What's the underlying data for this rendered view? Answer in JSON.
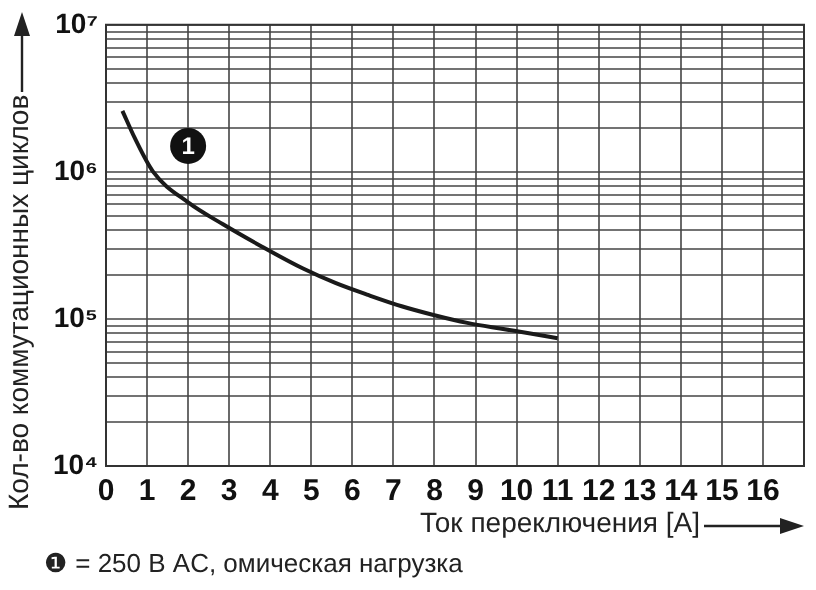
{
  "chart_data": {
    "type": "line",
    "xlabel": "Ток переключения [A]",
    "ylabel": "Кол-во коммутационных циклов",
    "log": "y",
    "grid": true,
    "marker": "none",
    "line_style": "solid",
    "legend": false,
    "xlim": [
      0,
      17
    ],
    "xticks": [
      0,
      1,
      2,
      3,
      4,
      5,
      6,
      7,
      8,
      9,
      10,
      11,
      12,
      13,
      14,
      15,
      16
    ],
    "ylim": [
      10000,
      10000000
    ],
    "yticks": [
      {
        "value": 10000,
        "label": "10⁴"
      },
      {
        "value": 20000,
        "label": null
      },
      {
        "value": 30000,
        "label": null
      },
      {
        "value": 40000,
        "label": null
      },
      {
        "value": 50000,
        "label": null
      },
      {
        "value": 60000,
        "label": null
      },
      {
        "value": 70000,
        "label": null
      },
      {
        "value": 80000,
        "label": null
      },
      {
        "value": 90000,
        "label": null
      },
      {
        "value": 100000,
        "label": "10⁵"
      },
      {
        "value": 200000,
        "label": null
      },
      {
        "value": 300000,
        "label": null
      },
      {
        "value": 400000,
        "label": null
      },
      {
        "value": 500000,
        "label": null
      },
      {
        "value": 600000,
        "label": null
      },
      {
        "value": 700000,
        "label": null
      },
      {
        "value": 800000,
        "label": null
      },
      {
        "value": 900000,
        "label": null
      },
      {
        "value": 1000000,
        "label": "10⁶"
      },
      {
        "value": 2000000,
        "label": null
      },
      {
        "value": 3000000,
        "label": null
      },
      {
        "value": 4000000,
        "label": null
      },
      {
        "value": 5000000,
        "label": null
      },
      {
        "value": 6000000,
        "label": null
      },
      {
        "value": 7000000,
        "label": null
      },
      {
        "value": 8000000,
        "label": null
      },
      {
        "value": 9000000,
        "label": null
      },
      {
        "value": 10000000,
        "label": "10⁷"
      }
    ],
    "series": [
      {
        "color": "#1a1a1a",
        "x": [
          0.4,
          0.7,
          1.15,
          2,
          2.85,
          3.8,
          4.8,
          5.6,
          6.4,
          7.2,
          8,
          8.8,
          9.6,
          10.3,
          11
        ],
        "values": [
          2600000,
          1700000,
          1000000,
          620000,
          440000,
          310000,
          220000,
          175000,
          145000,
          122000,
          106000,
          94000,
          86000,
          80000,
          74000
        ]
      }
    ],
    "annotations": [
      {
        "text": "1",
        "x": 2,
        "y": 1500000
      },
      "❶ = 250 В AC, омическая нагрузка"
    ]
  }
}
